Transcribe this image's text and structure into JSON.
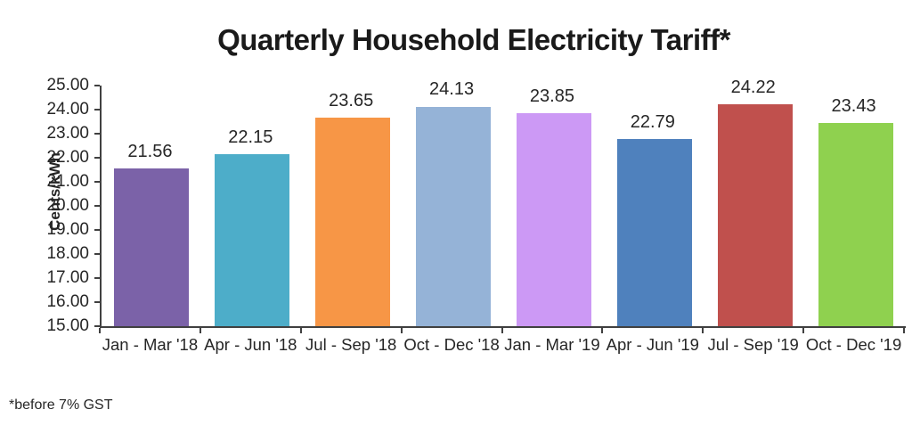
{
  "title": "Quarterly Household Electricity Tariff*",
  "footnote": "*before 7% GST",
  "chart_data": {
    "type": "bar",
    "title": "Quarterly Household Electricity Tariff*",
    "categories": [
      "Jan - Mar '18",
      "Apr - Jun '18",
      "Jul - Sep '18",
      "Oct - Dec '18",
      "Jan - Mar '19",
      "Apr - Jun '19",
      "Jul - Sep '19",
      "Oct - Dec '19"
    ],
    "values": [
      21.56,
      22.15,
      23.65,
      24.13,
      23.85,
      22.79,
      24.22,
      23.43
    ],
    "value_labels": [
      "21.56",
      "22.15",
      "23.65",
      "24.13",
      "23.85",
      "22.79",
      "24.22",
      "23.43"
    ],
    "bar_colors": [
      "#7B62A8",
      "#4DADC9",
      "#F79646",
      "#95B3D7",
      "#CC99F5",
      "#4F81BD",
      "#C0504D",
      "#8FD14F"
    ],
    "xlabel": "",
    "ylabel": "Cents/kWh",
    "ylim": [
      15,
      25
    ],
    "ytick_step": 1,
    "ytick_labels": [
      "25.00",
      "24.00",
      "23.00",
      "22.00",
      "21.00",
      "20.00",
      "19.00",
      "18.00",
      "17.00",
      "16.00",
      "15.00"
    ],
    "grid": false,
    "legend": false,
    "axis_color": "#404040",
    "text_color": "#262626",
    "footnote": "*before 7% GST"
  }
}
